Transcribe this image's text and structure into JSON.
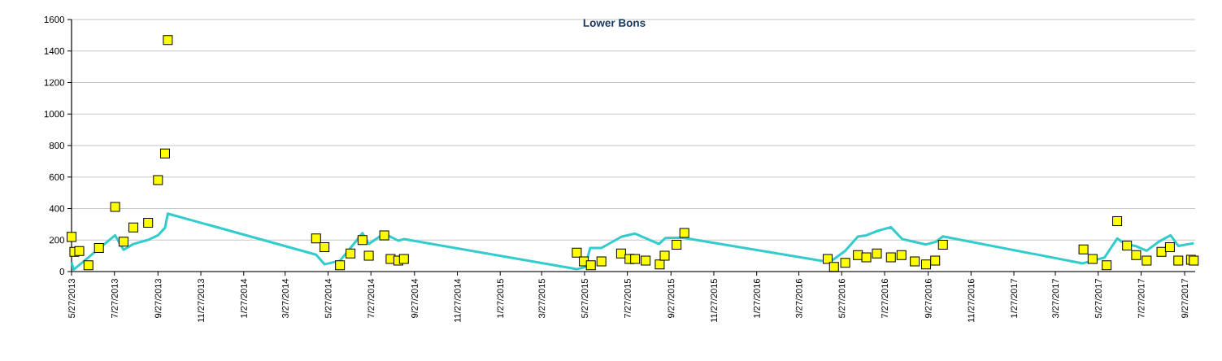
{
  "chart_data": {
    "type": "scatter",
    "title": "Lower Bons",
    "xlim": [
      "2013-05-27",
      "2017-10-12"
    ],
    "ylim": [
      0,
      1600
    ],
    "yticks": [
      0,
      200,
      400,
      600,
      800,
      1000,
      1200,
      1400,
      1600
    ],
    "grid": "y",
    "xticks": [
      {
        "value": "2013-05-27",
        "label": "5/27/2013"
      },
      {
        "value": "2013-07-27",
        "label": "7/27/2013"
      },
      {
        "value": "2013-09-27",
        "label": "9/27/2013"
      },
      {
        "value": "2013-11-27",
        "label": "11/27/2013"
      },
      {
        "value": "2014-01-27",
        "label": "1/27/2014"
      },
      {
        "value": "2014-03-27",
        "label": "3/27/2014"
      },
      {
        "value": "2014-05-27",
        "label": "5/27/2014"
      },
      {
        "value": "2014-07-27",
        "label": "7/27/2014"
      },
      {
        "value": "2014-09-27",
        "label": "9/27/2014"
      },
      {
        "value": "2014-11-27",
        "label": "11/27/2014"
      },
      {
        "value": "2015-01-27",
        "label": "1/27/2015"
      },
      {
        "value": "2015-03-27",
        "label": "3/27/2015"
      },
      {
        "value": "2015-05-27",
        "label": "5/27/2015"
      },
      {
        "value": "2015-07-27",
        "label": "7/27/2015"
      },
      {
        "value": "2015-09-27",
        "label": "9/27/2015"
      },
      {
        "value": "2015-11-27",
        "label": "11/27/2015"
      },
      {
        "value": "2016-01-27",
        "label": "1/27/2016"
      },
      {
        "value": "2016-03-27",
        "label": "3/27/2016"
      },
      {
        "value": "2016-05-27",
        "label": "5/27/2016"
      },
      {
        "value": "2016-07-27",
        "label": "7/27/2016"
      },
      {
        "value": "2016-09-27",
        "label": "9/27/2016"
      },
      {
        "value": "2016-11-27",
        "label": "11/27/2016"
      },
      {
        "value": "2017-01-27",
        "label": "1/27/2017"
      },
      {
        "value": "2017-03-27",
        "label": "3/27/2017"
      },
      {
        "value": "2017-05-27",
        "label": "5/27/2017"
      },
      {
        "value": "2017-07-27",
        "label": "7/27/2017"
      },
      {
        "value": "2017-09-27",
        "label": "9/27/2017"
      }
    ],
    "series": [
      {
        "type": "line",
        "color": "#33cccc",
        "marker": "none",
        "x": [
          "2013-05-27",
          "2013-05-30",
          "2013-07-28",
          "2013-08-09",
          "2013-08-23",
          "2013-09-13",
          "2013-09-27",
          "2013-10-07",
          "2013-10-11",
          "2014-05-10",
          "2014-05-22",
          "2014-06-13",
          "2014-06-28",
          "2014-07-15",
          "2014-07-24",
          "2014-08-15",
          "2014-09-04",
          "2014-09-12",
          "2015-05-16",
          "2015-05-28",
          "2015-06-04",
          "2015-06-20",
          "2015-07-19",
          "2015-08-07",
          "2015-09-10",
          "2015-09-19",
          "2015-10-13",
          "2016-05-05",
          "2016-05-15",
          "2016-06-01",
          "2016-06-19",
          "2016-07-01",
          "2016-07-17",
          "2016-08-05",
          "2016-08-21",
          "2016-09-24",
          "2016-10-08",
          "2016-10-18",
          "2017-05-05",
          "2017-06-05",
          "2017-06-23",
          "2017-07-04",
          "2017-07-20",
          "2017-08-04",
          "2017-08-22",
          "2017-09-07",
          "2017-09-18",
          "2017-10-10"
        ],
        "values": [
          58,
          12,
          230,
          138,
          175,
          201,
          230,
          278,
          368,
          107,
          46,
          69,
          150,
          244,
          175,
          241,
          196,
          206,
          15,
          29,
          150,
          150,
          222,
          241,
          175,
          213,
          216,
          63,
          76,
          132,
          222,
          230,
          258,
          282,
          206,
          172,
          189,
          223,
          52,
          89,
          210,
          175,
          161,
          132,
          192,
          230,
          163,
          180
        ]
      },
      {
        "color": "#ffff00",
        "marker": "square",
        "x": [
          "2013-05-27",
          "2013-05-31",
          "2013-06-07",
          "2013-06-20",
          "2013-07-05",
          "2013-07-28",
          "2013-08-09",
          "2013-08-23",
          "2013-09-13",
          "2013-09-27",
          "2013-10-07",
          "2013-10-11",
          "2014-05-10",
          "2014-05-22",
          "2014-06-13",
          "2014-06-28",
          "2014-07-15",
          "2014-07-24",
          "2014-08-15",
          "2014-08-24",
          "2014-09-04",
          "2014-09-12",
          "2015-05-16",
          "2015-05-26",
          "2015-06-05",
          "2015-06-20",
          "2015-07-18",
          "2015-07-30",
          "2015-08-07",
          "2015-08-22",
          "2015-09-11",
          "2015-09-18",
          "2015-10-05",
          "2015-10-16",
          "2016-05-07",
          "2016-05-16",
          "2016-06-01",
          "2016-06-19",
          "2016-07-01",
          "2016-07-16",
          "2016-08-05",
          "2016-08-20",
          "2016-09-08",
          "2016-09-24",
          "2016-10-07",
          "2016-10-18",
          "2017-05-06",
          "2017-05-19",
          "2017-06-08",
          "2017-06-23",
          "2017-07-07",
          "2017-07-20",
          "2017-08-04",
          "2017-08-25",
          "2017-09-06",
          "2017-09-18",
          "2017-10-06",
          "2017-10-10"
        ],
        "values": [
          220,
          125,
          130,
          40,
          150,
          410,
          190,
          280,
          310,
          580,
          750,
          1470,
          210,
          155,
          40,
          115,
          200,
          100,
          230,
          80,
          70,
          80,
          120,
          65,
          40,
          65,
          115,
          80,
          80,
          70,
          45,
          100,
          170,
          245,
          80,
          30,
          55,
          105,
          90,
          115,
          90,
          105,
          65,
          45,
          70,
          170,
          140,
          80,
          40,
          320,
          165,
          105,
          70,
          125,
          155,
          70,
          75,
          70
        ]
      }
    ]
  }
}
